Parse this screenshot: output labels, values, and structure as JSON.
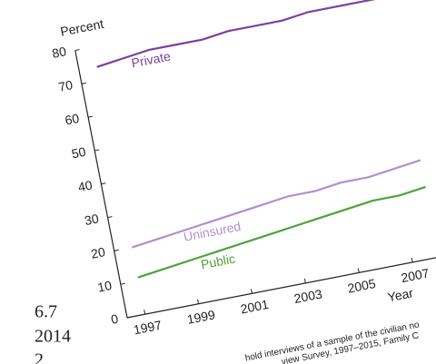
{
  "chart_data": {
    "type": "line",
    "ylabel": "Percent",
    "xlabel": "Year",
    "x": [
      1997,
      1998,
      1999,
      2000,
      2001,
      2002,
      2003,
      2004,
      2005,
      2006,
      2007,
      2008
    ],
    "series": [
      {
        "name": "Private",
        "color": "#7b3fa0",
        "values": [
          74,
          75,
          76,
          76,
          76,
          77,
          77,
          77,
          78,
          78,
          78,
          78
        ]
      },
      {
        "name": "Uninsured",
        "color": "#b08fd0",
        "values": [
          20,
          21,
          22,
          23,
          24,
          25,
          26,
          26,
          27,
          27,
          28,
          29
        ]
      },
      {
        "name": "Public",
        "color": "#4ea23a",
        "values": [
          11,
          12,
          13,
          14,
          15,
          16,
          17,
          18,
          19,
          20,
          20,
          21
        ]
      }
    ],
    "xlim": [
      1996.3,
      2008
    ],
    "xticks": [
      1997,
      1999,
      2001,
      2003,
      2005,
      2007
    ],
    "ylim": [
      0,
      80
    ],
    "yticks": [
      0,
      10,
      20,
      30,
      40,
      50,
      60,
      70,
      80
    ],
    "fragments": [
      "6.7",
      "2014",
      "2",
      "hold interviews of a sample of the civilian no",
      "view Survey, 1997–2015, Family C"
    ]
  }
}
